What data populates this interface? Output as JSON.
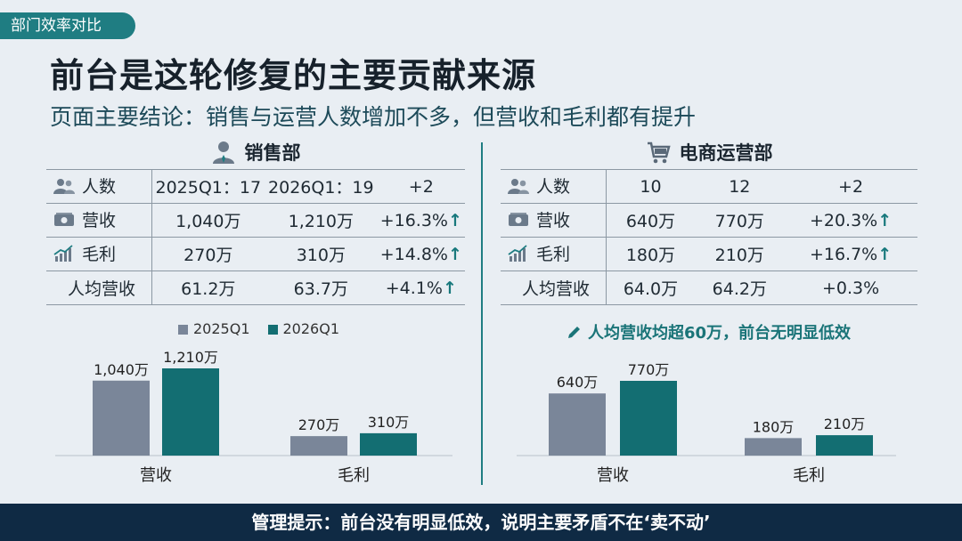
{
  "tag": "部门效率对比",
  "title": "前台是这轮修复的主要贡献来源",
  "subtitle": "页面主要结论：销售与运营人数增加不多，但营收和毛利都有提升",
  "colors": {
    "q2025": "#7a8699",
    "q2026": "#136e72",
    "accent": "#1f7d82",
    "footer": "#0f2a44"
  },
  "sales": {
    "name": "销售部",
    "icon": "person-icon",
    "rows": [
      {
        "label": "人数",
        "icon": "people-icon",
        "a": "2025Q1：17",
        "b": "2026Q1：19",
        "c": "+2",
        "up": false
      },
      {
        "label": "营收",
        "icon": "cash-icon",
        "a": "1,040万",
        "b": "1,210万",
        "c": "+16.3%",
        "up": true
      },
      {
        "label": "毛利",
        "icon": "trend-icon",
        "a": "270万",
        "b": "310万",
        "c": "+14.8%",
        "up": true
      },
      {
        "label": "人均营收",
        "icon": "",
        "a": "61.2万",
        "b": "63.7万",
        "c": "+4.1%",
        "up": true
      }
    ]
  },
  "ecom": {
    "name": "电商运营部",
    "icon": "cart-icon",
    "rows": [
      {
        "label": "人数",
        "icon": "people-icon",
        "a": "10",
        "b": "12",
        "c": "+2",
        "up": false
      },
      {
        "label": "营收",
        "icon": "cash-icon",
        "a": "640万",
        "b": "770万",
        "c": "+20.3%",
        "up": true
      },
      {
        "label": "毛利",
        "icon": "trend-icon",
        "a": "180万",
        "b": "210万",
        "c": "+16.7%",
        "up": true
      },
      {
        "label": "人均营收",
        "icon": "",
        "a": "64.0万",
        "b": "64.2万",
        "c": "+0.3%",
        "up": false
      }
    ]
  },
  "legend": {
    "a": "2025Q1",
    "b": "2026Q1"
  },
  "note": "人均营收均超60万，前台无明显低效",
  "footer": "管理提示：前台没有明显低效，说明主要矛盾不在‘卖不动’",
  "chart_data": [
    {
      "type": "bar",
      "categories": [
        "营收",
        "毛利"
      ],
      "series": [
        {
          "name": "2025Q1",
          "values": [
            1040,
            270
          ],
          "labels": [
            "1,040万",
            "270万"
          ]
        },
        {
          "name": "2026Q1",
          "values": [
            1210,
            310
          ],
          "labels": [
            "1,210万",
            "310万"
          ]
        }
      ]
    },
    {
      "type": "bar",
      "categories": [
        "营收",
        "毛利"
      ],
      "series": [
        {
          "name": "2025Q1",
          "values": [
            640,
            180
          ],
          "labels": [
            "640万",
            "180万"
          ]
        },
        {
          "name": "2026Q1",
          "values": [
            770,
            210
          ],
          "labels": [
            "770万",
            "210万"
          ]
        }
      ]
    }
  ]
}
